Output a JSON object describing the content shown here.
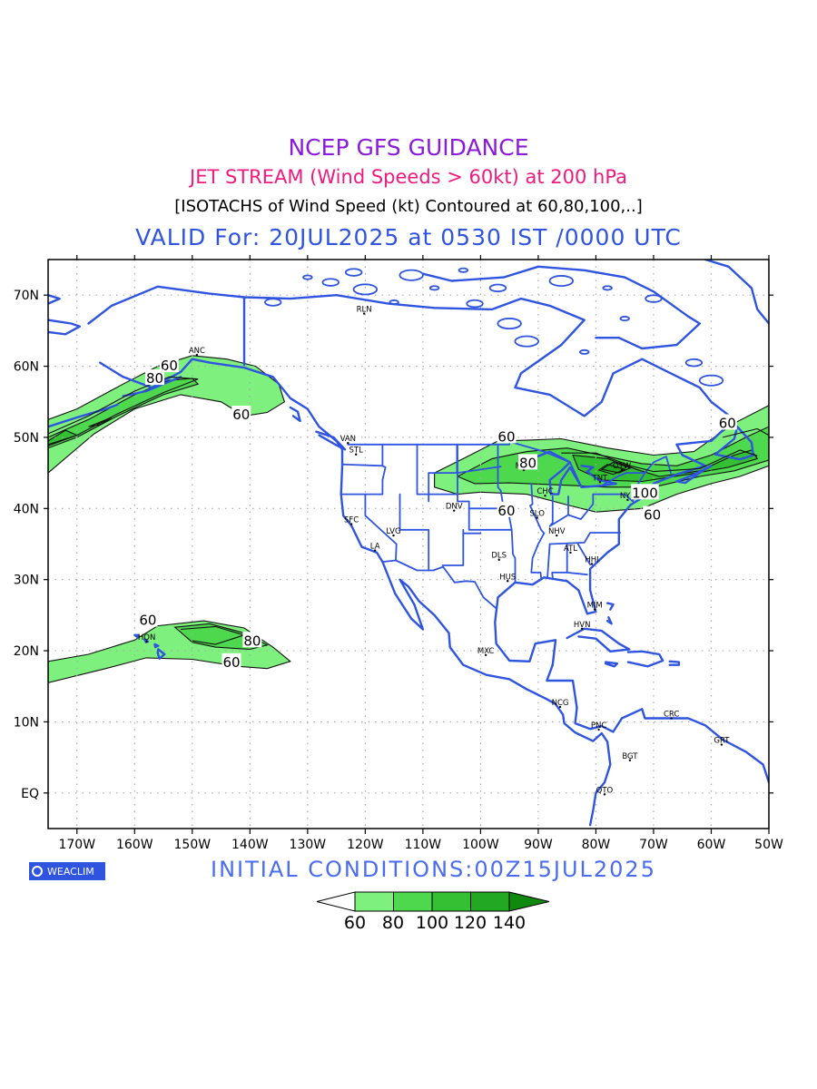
{
  "titles": {
    "line1": "NCEP GFS GUIDANCE",
    "line2": "JET STREAM (Wind Speeds > 60kt) at 200 hPa",
    "line3": "[ISOTACHS of Wind Speed (kt) Contoured at 60,80,100,..]",
    "line4": "VALID For: 20JUL2025 at 0530 IST /0000 UTC"
  },
  "initial_conditions": "INITIAL CONDITIONS:00Z15JUL2025",
  "logo_text": "WEACLIM",
  "colors": {
    "title1": "#8a1bd8",
    "title2": "#ee1a7d",
    "title3": "#000000",
    "title4": "#2f54e0",
    "coast": "#2f54e0",
    "initial": "#4a6cf0",
    "fill60": "#7df07d",
    "fill80": "#4ed84e",
    "fill100": "#33c033",
    "fill120": "#22a822",
    "fill140": "#0f8a0f"
  },
  "axes": {
    "lat_labels": [
      "70N",
      "60N",
      "50N",
      "40N",
      "30N",
      "20N",
      "10N",
      "EQ"
    ],
    "lon_labels": [
      "170W",
      "160W",
      "150W",
      "140W",
      "130W",
      "120W",
      "110W",
      "100W",
      "90W",
      "80W",
      "70W",
      "60W",
      "50W"
    ]
  },
  "colorbar": {
    "labels": [
      "60",
      "80",
      "100",
      "120",
      "140"
    ]
  },
  "contour_labels": [
    {
      "text": "60",
      "lon": -154,
      "lat": 60.2
    },
    {
      "text": "80",
      "lon": -156.5,
      "lat": 58.4
    },
    {
      "text": "60",
      "lon": -141.5,
      "lat": 53.3
    },
    {
      "text": "60",
      "lon": -95.5,
      "lat": 50.2
    },
    {
      "text": "80",
      "lon": -91.8,
      "lat": 46.5
    },
    {
      "text": "60",
      "lon": -95.5,
      "lat": 39.8
    },
    {
      "text": "100",
      "lon": -71.5,
      "lat": 42.3
    },
    {
      "text": "60",
      "lon": -70.2,
      "lat": 39.2
    },
    {
      "text": "60",
      "lon": -57.2,
      "lat": 52.1
    },
    {
      "text": "60",
      "lon": -157.7,
      "lat": 24.4
    },
    {
      "text": "80",
      "lon": -139.6,
      "lat": 21.5
    },
    {
      "text": "60",
      "lon": -143.2,
      "lat": 18.5
    }
  ],
  "stations": [
    {
      "text": "RLN",
      "lon": -120.2,
      "lat": 67.4
    },
    {
      "text": "ANC",
      "lon": -149.2,
      "lat": 61.6
    },
    {
      "text": "VAN",
      "lon": -123.0,
      "lat": 49.2
    },
    {
      "text": "STL",
      "lon": -121.6,
      "lat": 47.6
    },
    {
      "text": "WD",
      "lon": -95.6,
      "lat": 49.8
    },
    {
      "text": "MNP",
      "lon": -92.5,
      "lat": 45.4
    },
    {
      "text": "OTW",
      "lon": -75.5,
      "lat": 45.4
    },
    {
      "text": "TNT",
      "lon": -79.3,
      "lat": 43.7
    },
    {
      "text": "CHC",
      "lon": -88.8,
      "lat": 41.8
    },
    {
      "text": "NYK",
      "lon": -74.5,
      "lat": 41.2
    },
    {
      "text": "DNV",
      "lon": -104.6,
      "lat": 39.7
    },
    {
      "text": "SFC",
      "lon": -122.4,
      "lat": 37.8
    },
    {
      "text": "LVG",
      "lon": -115.1,
      "lat": 36.2
    },
    {
      "text": "LA",
      "lon": -118.3,
      "lat": 34.1
    },
    {
      "text": "SLO",
      "lon": -90.2,
      "lat": 38.7
    },
    {
      "text": "NHV",
      "lon": -86.8,
      "lat": 36.2
    },
    {
      "text": "ATL",
      "lon": -84.4,
      "lat": 33.8
    },
    {
      "text": "DLS",
      "lon": -96.8,
      "lat": 32.8
    },
    {
      "text": "HHI",
      "lon": -80.7,
      "lat": 32.2
    },
    {
      "text": "HUS",
      "lon": -95.3,
      "lat": 29.8
    },
    {
      "text": "MIM",
      "lon": -80.2,
      "lat": 25.8
    },
    {
      "text": "HVN",
      "lon": -82.4,
      "lat": 23.1
    },
    {
      "text": "MXC",
      "lon": -99.1,
      "lat": 19.4
    },
    {
      "text": "HON",
      "lon": -157.9,
      "lat": 21.3
    },
    {
      "text": "NCG",
      "lon": -86.2,
      "lat": 12.1
    },
    {
      "text": "PNC",
      "lon": -79.5,
      "lat": 8.9
    },
    {
      "text": "CRC",
      "lon": -66.9,
      "lat": 10.5
    },
    {
      "text": "BGT",
      "lon": -74.1,
      "lat": 4.6
    },
    {
      "text": "GRT",
      "lon": -58.2,
      "lat": 6.8
    },
    {
      "text": "QTO",
      "lon": -78.5,
      "lat": -0.2
    }
  ]
}
